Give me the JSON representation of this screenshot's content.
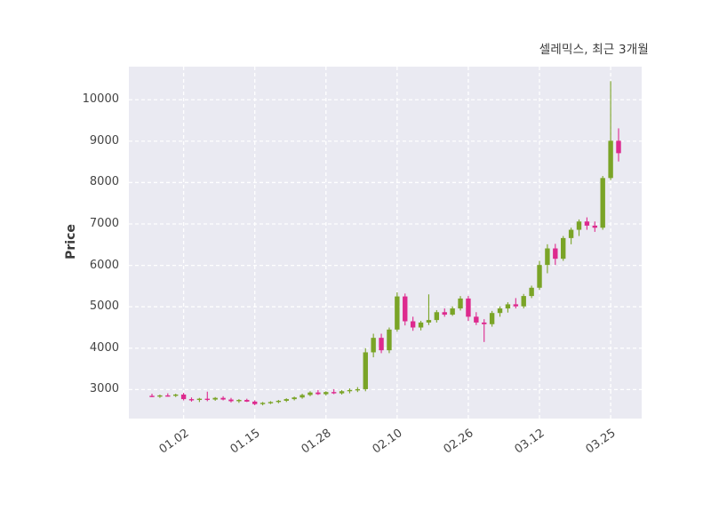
{
  "title": "셀레믹스, 최근 3개월",
  "ylabel": "Price",
  "chart_data": {
    "type": "candlestick",
    "title": "셀레믹스, 최근 3개월",
    "ylabel": "Price",
    "xlabel": "",
    "ylim": [
      2300,
      10800
    ],
    "yticks": [
      3000,
      4000,
      5000,
      6000,
      7000,
      8000,
      9000,
      10000
    ],
    "xtick_indices": [
      4,
      13,
      22,
      31,
      40,
      49,
      58
    ],
    "xtick_labels": [
      "01.02",
      "01.15",
      "01.28",
      "02.10",
      "02.26",
      "03.12",
      "03.25"
    ],
    "grid": true,
    "grid_style": "dashed",
    "legend": "none",
    "up_color": "#7aa427",
    "down_color": "#dd2a8e",
    "plot_background": "#eaeaf2",
    "grid_color": "#ffffff",
    "candles_format": [
      "open",
      "high",
      "low",
      "close"
    ],
    "candles": [
      [
        2850,
        2900,
        2820,
        2840
      ],
      [
        2840,
        2880,
        2800,
        2860
      ],
      [
        2860,
        2910,
        2830,
        2850
      ],
      [
        2850,
        2900,
        2820,
        2880
      ],
      [
        2880,
        2920,
        2740,
        2770
      ],
      [
        2770,
        2810,
        2710,
        2750
      ],
      [
        2750,
        2800,
        2700,
        2780
      ],
      [
        2780,
        2950,
        2720,
        2760
      ],
      [
        2760,
        2820,
        2730,
        2800
      ],
      [
        2800,
        2840,
        2740,
        2760
      ],
      [
        2760,
        2800,
        2690,
        2720
      ],
      [
        2720,
        2770,
        2680,
        2750
      ],
      [
        2750,
        2780,
        2700,
        2710
      ],
      [
        2710,
        2740,
        2620,
        2650
      ],
      [
        2650,
        2700,
        2620,
        2680
      ],
      [
        2680,
        2720,
        2650,
        2700
      ],
      [
        2700,
        2750,
        2670,
        2730
      ],
      [
        2730,
        2790,
        2700,
        2770
      ],
      [
        2770,
        2830,
        2740,
        2810
      ],
      [
        2810,
        2900,
        2780,
        2870
      ],
      [
        2870,
        2960,
        2840,
        2930
      ],
      [
        2930,
        2990,
        2870,
        2890
      ],
      [
        2890,
        2960,
        2860,
        2940
      ],
      [
        2940,
        3010,
        2890,
        2910
      ],
      [
        2910,
        2990,
        2880,
        2960
      ],
      [
        2960,
        3030,
        2910,
        2990
      ],
      [
        2990,
        3060,
        2940,
        3010
      ],
      [
        3010,
        4000,
        2960,
        3900
      ],
      [
        3900,
        4350,
        3780,
        4250
      ],
      [
        4250,
        4350,
        3880,
        3950
      ],
      [
        3950,
        4500,
        3880,
        4450
      ],
      [
        4450,
        5350,
        4400,
        5250
      ],
      [
        5250,
        5320,
        4550,
        4650
      ],
      [
        4650,
        4760,
        4420,
        4500
      ],
      [
        4500,
        4660,
        4430,
        4620
      ],
      [
        4620,
        5300,
        4560,
        4680
      ],
      [
        4680,
        4920,
        4620,
        4870
      ],
      [
        4870,
        4960,
        4760,
        4810
      ],
      [
        4810,
        5010,
        4780,
        4960
      ],
      [
        4960,
        5260,
        4910,
        5200
      ],
      [
        5200,
        5260,
        4660,
        4760
      ],
      [
        4760,
        4870,
        4560,
        4620
      ],
      [
        4620,
        4700,
        4150,
        4580
      ],
      [
        4580,
        4900,
        4520,
        4850
      ],
      [
        4850,
        5010,
        4760,
        4960
      ],
      [
        4960,
        5110,
        4860,
        5060
      ],
      [
        5060,
        5210,
        4960,
        5010
      ],
      [
        5010,
        5310,
        4960,
        5260
      ],
      [
        5260,
        5510,
        5210,
        5460
      ],
      [
        5460,
        6110,
        5410,
        6010
      ],
      [
        6010,
        6510,
        5810,
        6410
      ],
      [
        6410,
        6520,
        6010,
        6160
      ],
      [
        6160,
        6710,
        6110,
        6660
      ],
      [
        6660,
        6910,
        6510,
        6860
      ],
      [
        6860,
        7110,
        6710,
        7060
      ],
      [
        7060,
        7160,
        6860,
        6960
      ],
      [
        6960,
        7060,
        6810,
        6910
      ],
      [
        6910,
        8160,
        6860,
        8110
      ],
      [
        8110,
        10450,
        8060,
        9010
      ],
      [
        9010,
        9310,
        8510,
        8710
      ]
    ]
  }
}
